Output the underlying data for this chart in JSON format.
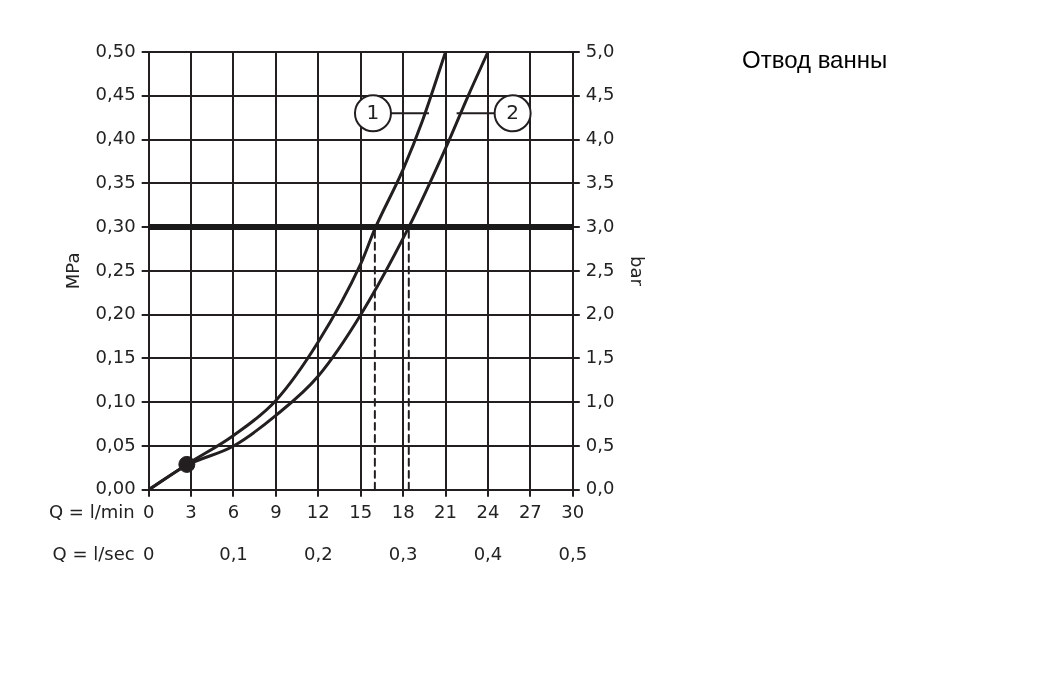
{
  "chart_data": {
    "type": "line",
    "title": "Отвод ванны",
    "xlabel": "Q = l/min",
    "x2label": "Q = l/sec",
    "ylabel": "MPa",
    "y2label": "bar",
    "xlim": [
      0,
      30
    ],
    "xticks": [
      0,
      3,
      6,
      9,
      12,
      15,
      18,
      21,
      24,
      27,
      30
    ],
    "x2lim": [
      0,
      0.5
    ],
    "x2ticks": [
      {
        "value": 0,
        "label": "0"
      },
      {
        "value": 0.1,
        "label": "0,1"
      },
      {
        "value": 0.2,
        "label": "0,2"
      },
      {
        "value": 0.3,
        "label": "0,3"
      },
      {
        "value": 0.4,
        "label": "0,4"
      },
      {
        "value": 0.5,
        "label": "0,5"
      }
    ],
    "ylim": [
      0,
      0.5
    ],
    "yticks": [
      {
        "value": 0,
        "label": "0,00"
      },
      {
        "value": 0.05,
        "label": "0,05"
      },
      {
        "value": 0.1,
        "label": "0,10"
      },
      {
        "value": 0.15,
        "label": "0,15"
      },
      {
        "value": 0.2,
        "label": "0,20"
      },
      {
        "value": 0.25,
        "label": "0,25"
      },
      {
        "value": 0.3,
        "label": "0,30"
      },
      {
        "value": 0.35,
        "label": "0,35"
      },
      {
        "value": 0.4,
        "label": "0,40"
      },
      {
        "value": 0.45,
        "label": "0,45"
      },
      {
        "value": 0.5,
        "label": "0,50"
      }
    ],
    "y2lim": [
      0,
      5
    ],
    "y2ticks": [
      {
        "value": 0,
        "label": "0,0"
      },
      {
        "value": 0.5,
        "label": "0,5"
      },
      {
        "value": 1,
        "label": "1,0"
      },
      {
        "value": 1.5,
        "label": "1,5"
      },
      {
        "value": 2,
        "label": "2,0"
      },
      {
        "value": 2.5,
        "label": "2,5"
      },
      {
        "value": 3,
        "label": "3,0"
      },
      {
        "value": 3.5,
        "label": "3,5"
      },
      {
        "value": 4,
        "label": "4,0"
      },
      {
        "value": 4.5,
        "label": "4,5"
      },
      {
        "value": 5,
        "label": "5,0"
      }
    ],
    "grid": true,
    "legend": "top right",
    "marker": "none",
    "line_style": "solid",
    "ref_lines": [
      {
        "axis": "y",
        "value": 0.3,
        "color": "#1a1a1a"
      }
    ],
    "series": [
      {
        "name": "1",
        "color": "#231f20",
        "x": [
          0,
          2.7,
          6,
          9,
          12,
          15,
          16,
          18,
          19.4,
          21
        ],
        "values": [
          0,
          0.029,
          0.062,
          0.102,
          0.169,
          0.258,
          0.298,
          0.366,
          0.423,
          0.5
        ]
      },
      {
        "name": "2",
        "color": "#231f20",
        "x": [
          0,
          2.7,
          6,
          9,
          12,
          15,
          18.4,
          21,
          22.6,
          24
        ],
        "values": [
          0,
          0.028,
          0.05,
          0.085,
          0.13,
          0.2,
          0.3,
          0.39,
          0.45,
          0.5
        ]
      },
      {
        "type": "line",
        "color": "#231f20",
        "line_style": "dashed",
        "x": [
          16,
          16
        ],
        "values": [
          0,
          0.3
        ]
      },
      {
        "type": "line",
        "color": "#231f20",
        "line_style": "dashed",
        "x": [
          18.4,
          18.4
        ],
        "values": [
          0,
          0.3
        ]
      },
      {
        "type": "scatter",
        "color": "#231f20",
        "marker": "circle",
        "x": [
          2.7
        ],
        "values": [
          0.029
        ]
      }
    ]
  }
}
